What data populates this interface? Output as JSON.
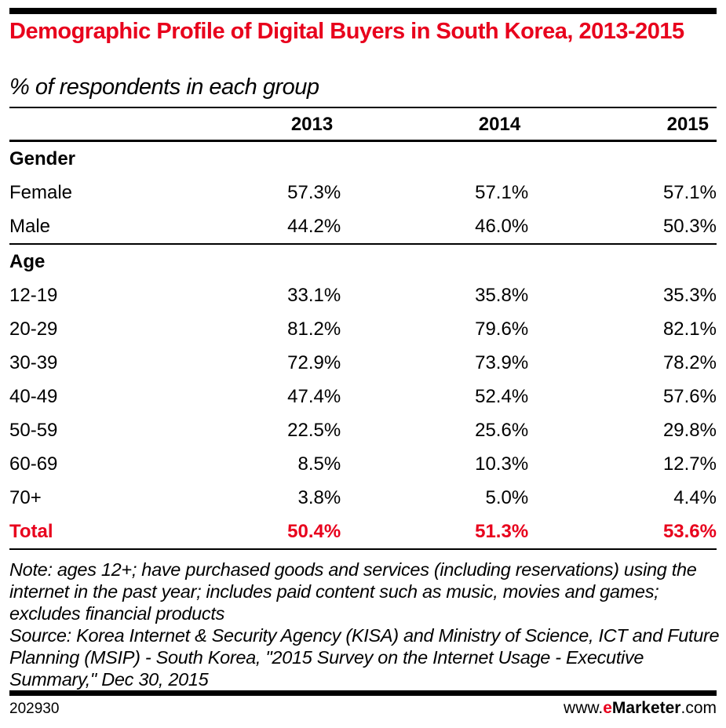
{
  "title": "Demographic Profile of Digital Buyers in South Korea, 2013-2015",
  "subtitle": "% of respondents in each group",
  "chart_data": {
    "type": "table",
    "columns": [
      "2013",
      "2014",
      "2015"
    ],
    "sections": [
      {
        "name": "Gender",
        "rows": [
          {
            "label": "Female",
            "values": [
              "57.3%",
              "57.1%",
              "57.1%"
            ]
          },
          {
            "label": "Male",
            "values": [
              "44.2%",
              "46.0%",
              "50.3%"
            ]
          }
        ]
      },
      {
        "name": "Age",
        "rows": [
          {
            "label": "12-19",
            "values": [
              "33.1%",
              "35.8%",
              "35.3%"
            ]
          },
          {
            "label": "20-29",
            "values": [
              "81.2%",
              "79.6%",
              "82.1%"
            ]
          },
          {
            "label": "30-39",
            "values": [
              "72.9%",
              "73.9%",
              "78.2%"
            ]
          },
          {
            "label": "40-49",
            "values": [
              "47.4%",
              "52.4%",
              "57.6%"
            ]
          },
          {
            "label": "50-59",
            "values": [
              "22.5%",
              "25.6%",
              "29.8%"
            ]
          },
          {
            "label": "60-69",
            "values": [
              "8.5%",
              "10.3%",
              "12.7%"
            ]
          },
          {
            "label": "70+",
            "values": [
              "3.8%",
              "5.0%",
              "4.4%"
            ]
          }
        ]
      }
    ],
    "total": {
      "label": "Total",
      "values": [
        "50.4%",
        "51.3%",
        "53.6%"
      ]
    }
  },
  "note": "Note: ages 12+; have purchased goods and services (including reservations) using the internet in the past year; includes paid content such as music, movies and games; excludes financial products",
  "source": "Source: Korea Internet & Security Agency (KISA) and Ministry of Science, ICT and Future Planning (MSIP) - South Korea, \"2015 Survey on the Internet Usage - Executive Summary,\" Dec 30, 2015",
  "footer": {
    "id": "202930",
    "brand_prefix": "www.",
    "brand_e": "e",
    "brand_name": "Marketer",
    "brand_suffix": ".com"
  },
  "colors": {
    "accent": "#e8001c"
  }
}
